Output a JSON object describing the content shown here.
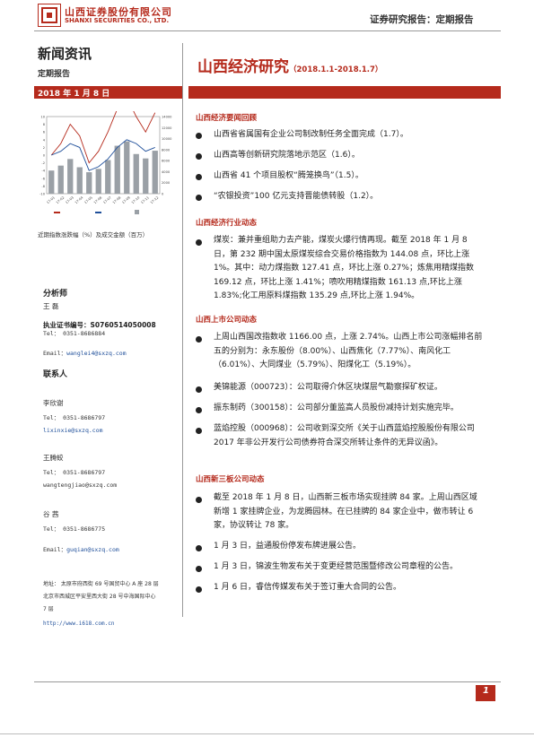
{
  "header": {
    "logo_cn": "山西证券股份有限公司",
    "logo_en": "SHANXI SECURITIES CO., LTD.",
    "right_title": "证券研究报告：定期报告"
  },
  "left": {
    "section_title": "新闻资讯",
    "subtitle": "定期报告",
    "date": "2018 年 1 月 8 日",
    "chart_caption": "近期指数涨跌幅（%）及成交金额（百万）",
    "analyst_heading": "分析师",
    "analyst_name": "王  磊",
    "cert_label": "执业证书编号：",
    "cert_no": "S0760514050008",
    "analyst_tel": "Tel：  0351-8686884",
    "analyst_email_label": "Email：",
    "analyst_email": "wanglei4@sxzq.com",
    "contacts_heading": "联系人",
    "contacts": [
      {
        "name": "李欣谢",
        "tel": "Tel：  0351-8686797",
        "email": "lixinxie@sxzq.com",
        "email_label": ""
      },
      {
        "name": "王腾蛟",
        "tel": "Tel：  0351-8686797",
        "email": "wangtengjiao@sxzq.com",
        "email_label": ""
      },
      {
        "name": "谷  茜",
        "tel": "Tel：  0351-8686775",
        "email": "guqian@sxzq.com",
        "email_label": "Email："
      }
    ],
    "address_1a": "地址：  太原市府西街 69 号国贸中心 A 座 28 层",
    "address_1b": "北京市西城区平安里西大街 28 号中海国际中心",
    "address_1c": "7 层",
    "website": "http://www.i618.com.cn"
  },
  "main": {
    "title": "山西经济研究",
    "title_period": "（2018.1.1-2018.1.7）",
    "sections": {
      "s1": {
        "heading": "山西经济要闻回顾",
        "items": [
          "山西省省属国有企业公司制改制任务全面完成（1.7）。",
          "山西高等创新研究院落地示范区（1.6）。",
          "山西省 41 个项目股权“腾笼换鸟”（1.5）。",
          "“农银投资”100 亿元支持晋能债转股（1.2）。"
        ]
      },
      "s2": {
        "heading": "山西经济行业动态",
        "items": [
          "煤炭：兼并重组助力去产能，煤炭火爆行情再现。截至 2018 年 1 月 8 日，第 232 期中国太原煤炭综合交易价格指数为 144.08 点，环比上涨 1%。其中：动力煤指数 127.41 点，环比上涨 0.27%；炼焦用精煤指数 169.12 点，环比上涨 1.41%；喷吹用精煤指数 161.13 点,环比上涨 1.83%;化工用原料煤指数 135.29 点,环比上涨 1.94%。"
        ]
      },
      "s3": {
        "heading": "山西上市公司动态",
        "items": [
          "上周山西国改指数收 1166.00 点，上涨 2.74%。山西上市公司涨幅排名前五的分别为：永东股份（8.00%）、山西焦化（7.77%）、南风化工（6.01%）、大同煤业（5.79%）、阳煤化工（5.19%）。",
          "美锦能源（000723）：公司取得介休区块煤层气勘察探矿权证。",
          "振东制药（300158）：公司部分董监高人员股份减持计划实施完毕。",
          "蓝焰控股（000968）：公司收到深交所《关于山西蓝焰控股股份有限公司 2017 年非公开发行公司债券符合深交所转让条件的无异议函》。"
        ]
      },
      "s4": {
        "heading": "山西新三板公司动态",
        "items": [
          "截至 2018 年 1 月 8 日，山西新三板市场实现挂牌 84 家。上周山西区域新增 1 家挂牌企业，为龙腾园林。在已挂牌的 84 家企业中，做市转让 6 家，协议转让 78 家。",
          "1 月 3 日，益通股份停发布牌进展公告。",
          "1 月 3 日，锦波生物发布关于变更经营范围暨修改公司章程的公告。",
          "1 月 6 日，睿信传媒发布关于签订重大合同的公告。"
        ]
      }
    }
  },
  "footer": {
    "page": "1"
  },
  "colors": {
    "accent": "#b52a1c",
    "blue_link": "#1f4f9a"
  },
  "chart_data": {
    "type": "bar",
    "categories": [
      "17-01",
      "17-02",
      "17-03",
      "17-04",
      "17-05",
      "17-06",
      "17-07",
      "17-08",
      "17-09",
      "17-10",
      "17-11",
      "17-12"
    ],
    "series": [
      {
        "name": "",
        "values": [
          4200,
          5100,
          6300,
          4800,
          3900,
          4500,
          6100,
          8700,
          9500,
          7200,
          6400,
          7800
        ]
      }
    ],
    "line_series": [
      {
        "name": "",
        "values": [
          0,
          3,
          8,
          5,
          -2,
          1,
          6,
          12,
          15,
          10,
          6,
          11
        ]
      },
      {
        "name": "",
        "values": [
          0,
          1,
          3,
          2,
          -4,
          -3,
          -1,
          2,
          4,
          3,
          1,
          2
        ]
      }
    ],
    "y_left": [
      10,
      8,
      6,
      4,
      2,
      0,
      -2,
      -4,
      -6,
      -8,
      -10
    ],
    "y_right": [
      14000,
      12000,
      10000,
      8000,
      6000,
      4000,
      2000,
      0
    ]
  }
}
